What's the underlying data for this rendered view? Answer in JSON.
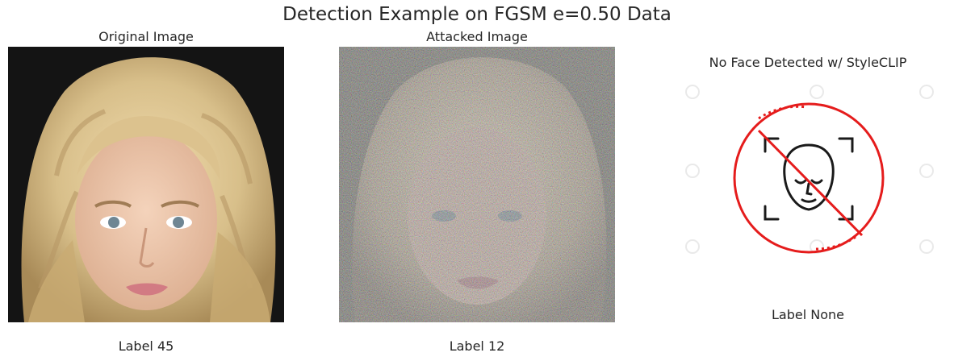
{
  "figure": {
    "title": "Detection Example on FGSM e=0.50 Data"
  },
  "panels": [
    {
      "subtitle": "Original Image",
      "label": "Label 45"
    },
    {
      "subtitle": "Attacked Image",
      "label": "Label 12"
    },
    {
      "subtitle": "No Face Detected w/ StyleCLIP",
      "label": "Label None"
    }
  ],
  "colors": {
    "prohibition_red": "#e51c1c",
    "hair_blonde": "#d8bf8a",
    "skin": "#e9c2a6",
    "dark_background": "#141414"
  }
}
